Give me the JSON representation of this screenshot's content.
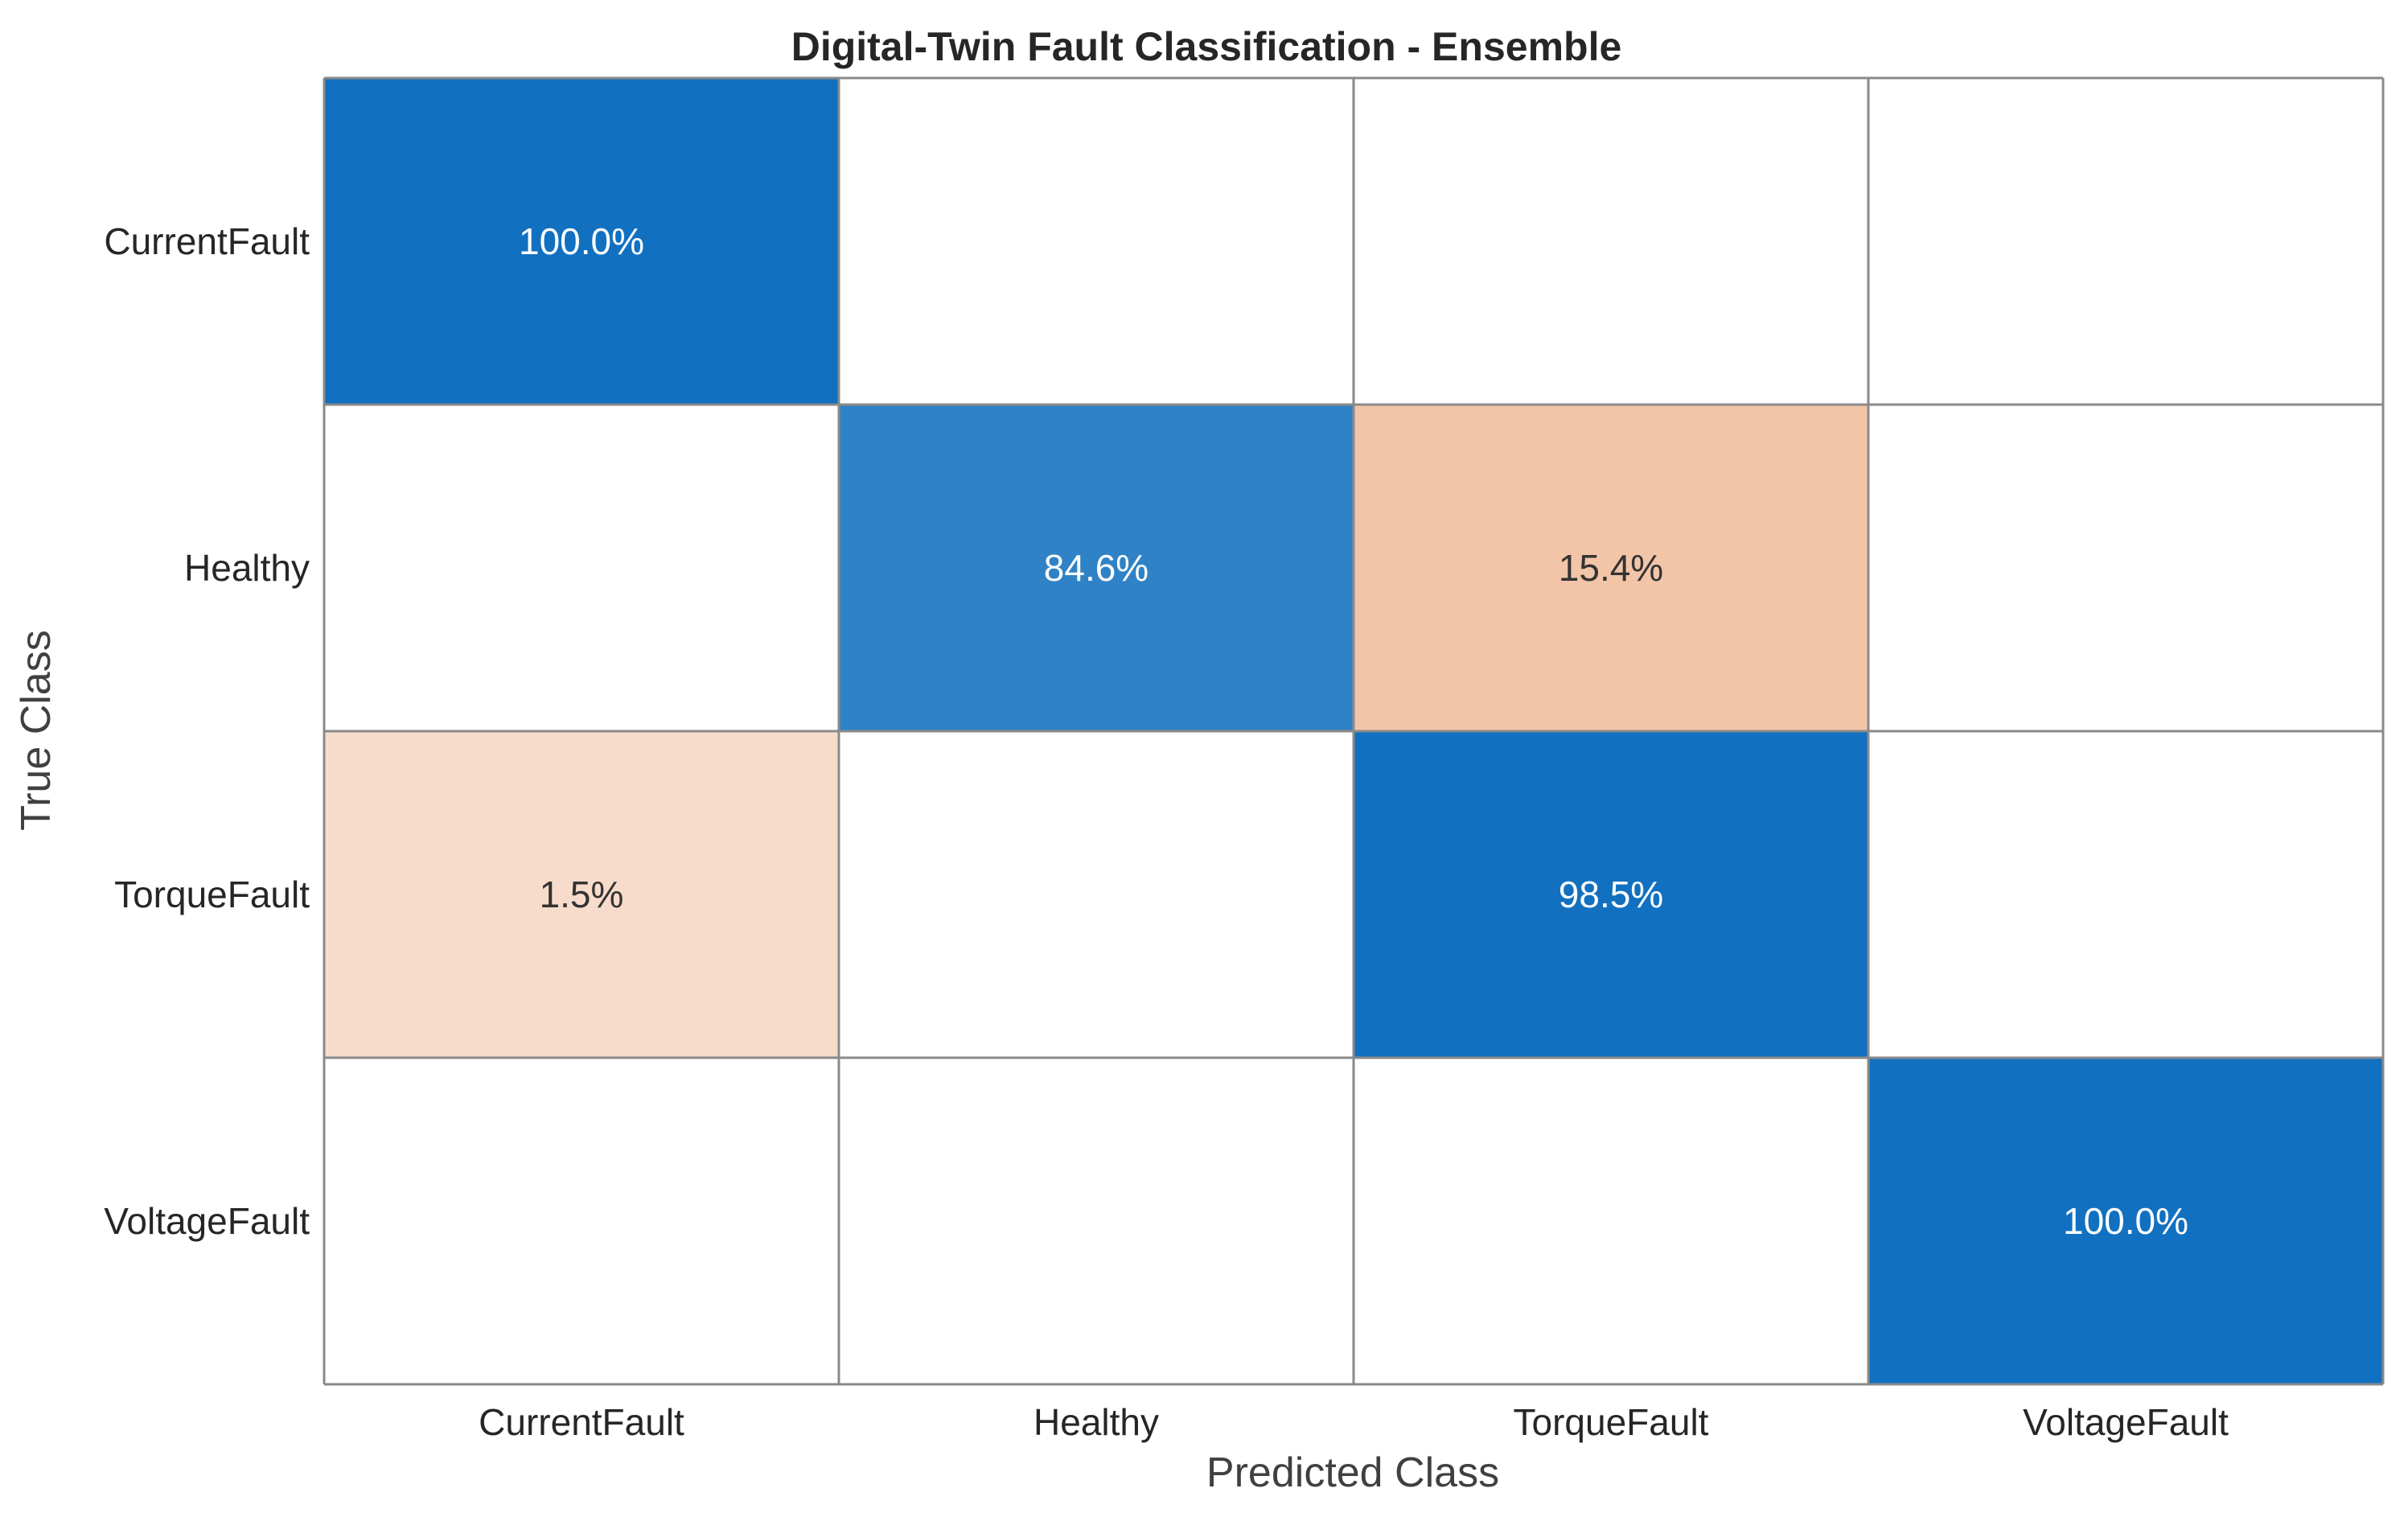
{
  "chart_data": {
    "type": "heatmap",
    "title": "Digital-Twin Fault Classification - Ensemble",
    "xlabel": "Predicted Class",
    "ylabel": "True Class",
    "x_categories": [
      "CurrentFault",
      "Healthy",
      "TorqueFault",
      "VoltageFault"
    ],
    "y_categories": [
      "CurrentFault",
      "Healthy",
      "TorqueFault",
      "VoltageFault"
    ],
    "values": [
      [
        100.0,
        null,
        null,
        null
      ],
      [
        null,
        84.6,
        15.4,
        null
      ],
      [
        1.5,
        null,
        98.5,
        null
      ],
      [
        null,
        null,
        null,
        100.0
      ]
    ],
    "value_format": "percent",
    "colors": {
      "correct_strong": "#1270c0",
      "correct_medium": "#2f82c6",
      "error_medium": "#f3c5a8",
      "error_light": "#f8dccb",
      "empty": "#ffffff",
      "grid": "#8a8a8a",
      "text_on_dark": "#ffffff",
      "text_on_light": "#333333"
    }
  }
}
